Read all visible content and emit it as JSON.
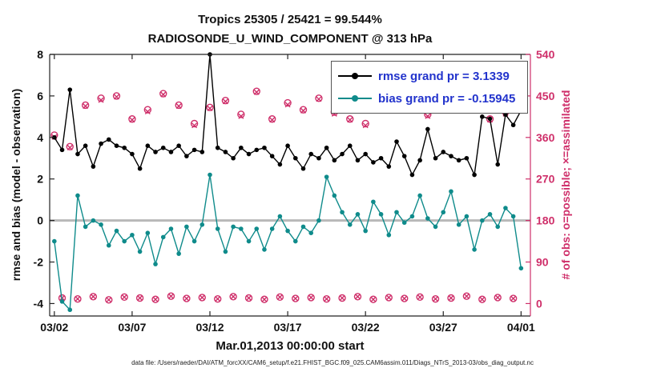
{
  "title": {
    "line1": "Tropics 25305 / 25421 = 99.544%",
    "line2": "RADIOSONDE_U_WIND_COMPONENT @ 313 hPa"
  },
  "axes": {
    "ylabel_left": "rmse and bias (model - observation)",
    "ylabel_right": "# of obs: o=possible; ×=assimilated",
    "xlabel": "Mar.01,2013 00:00:00 start"
  },
  "legend": {
    "items": [
      {
        "id": "rmse",
        "label": "rmse grand pr = 3.1339"
      },
      {
        "id": "bias",
        "label": "bias grand pr = -0.15945"
      }
    ]
  },
  "footer": {
    "datafile": "data file: /Users/raeder/DAI/ATM_forcXX/CAM6_setup/f.e21.FHIST_BGC.f09_025.CAM6assim.011/Diags_NTrS_2013-03/obs_diag_output.nc"
  },
  "chart_data": {
    "type": "line",
    "title": "Tropics 25305 / 25421 = 99.544% — RADIOSONDE_U_WIND_COMPONENT @ 313 hPa",
    "xlabel": "Mar.01,2013 00:00:00 start",
    "ylabel_left": "rmse and bias (model - observation)",
    "ylabel_right": "# of obs: o=possible; ×=assimilated",
    "x_unit": "days since Mar 1, 2013 00:00 UTC",
    "xlim": [
      0.7,
      31.6
    ],
    "ylim_left": [
      -4.6,
      8
    ],
    "ylim_right": [
      -27,
      540
    ],
    "xticks": [
      1,
      6,
      11,
      16,
      21,
      26,
      31
    ],
    "xtick_labels": [
      "03/02",
      "03/07",
      "03/12",
      "03/17",
      "03/22",
      "03/27",
      "04/01"
    ],
    "yticks_left": [
      -4,
      -2,
      0,
      2,
      4,
      6,
      8
    ],
    "yticks_right": [
      0,
      90,
      180,
      270,
      360,
      450,
      540
    ],
    "legend_position": "upper right inside axes",
    "grid": false,
    "colors": {
      "rmse": "#000000",
      "bias": "#0f8b8b",
      "counts": "#cf2f6a",
      "legend_text": "#2233cc",
      "zero_line": "#b8b8b8"
    },
    "x": [
      1,
      1.5,
      2,
      2.5,
      3,
      3.5,
      4,
      4.5,
      5,
      5.5,
      6,
      6.5,
      7,
      7.5,
      8,
      8.5,
      9,
      9.5,
      10,
      10.5,
      11,
      11.5,
      12,
      12.5,
      13,
      13.5,
      14,
      14.5,
      15,
      15.5,
      16,
      16.5,
      17,
      17.5,
      18,
      18.5,
      19,
      19.5,
      20,
      20.5,
      21,
      21.5,
      22,
      22.5,
      23,
      23.5,
      24,
      24.5,
      25,
      25.5,
      26,
      26.5,
      27,
      27.5,
      28,
      28.5,
      29,
      29.5,
      30,
      30.5,
      31
    ],
    "series": [
      {
        "name": "rmse",
        "axis": "left",
        "marker": "dot",
        "color": "#000000",
        "values": [
          4.0,
          3.4,
          6.3,
          3.2,
          3.6,
          2.6,
          3.7,
          3.9,
          3.6,
          3.5,
          3.2,
          2.5,
          3.6,
          3.3,
          3.5,
          3.3,
          3.6,
          3.1,
          3.4,
          3.3,
          8.0,
          3.5,
          3.3,
          3.0,
          3.5,
          3.2,
          3.4,
          3.5,
          3.1,
          2.7,
          3.6,
          3.0,
          2.5,
          3.2,
          3.0,
          3.5,
          2.9,
          3.2,
          3.6,
          2.9,
          3.2,
          2.8,
          3.0,
          2.6,
          3.8,
          3.1,
          2.2,
          2.9,
          4.4,
          3.0,
          3.3,
          3.1,
          2.9,
          3.0,
          2.2,
          5.0,
          4.9,
          2.7,
          5.1,
          4.6,
          5.3
        ]
      },
      {
        "name": "bias",
        "axis": "left",
        "marker": "dot",
        "color": "#0f8b8b",
        "values": [
          -1.0,
          -3.9,
          -4.3,
          1.2,
          -0.3,
          0.0,
          -0.2,
          -1.2,
          -0.5,
          -1.0,
          -0.7,
          -1.5,
          -0.6,
          -2.1,
          -0.8,
          -0.4,
          -1.6,
          -0.3,
          -1.0,
          -0.2,
          2.2,
          -0.4,
          -1.5,
          -0.3,
          -0.4,
          -1.0,
          -0.4,
          -1.4,
          -0.4,
          0.2,
          -0.5,
          -1.0,
          -0.3,
          -0.6,
          0.0,
          2.1,
          1.2,
          0.4,
          -0.2,
          0.3,
          -0.5,
          0.9,
          0.3,
          -0.7,
          0.4,
          -0.1,
          0.2,
          1.2,
          0.1,
          -0.3,
          0.4,
          1.4,
          -0.2,
          0.2,
          -1.4,
          0.0,
          0.3,
          -0.3,
          0.6,
          0.2,
          -2.3
        ]
      },
      {
        "name": "possible",
        "axis": "right",
        "marker": "o",
        "color": "#cf2f6a",
        "values": [
          365,
          12,
          340,
          10,
          430,
          15,
          445,
          8,
          450,
          14,
          400,
          12,
          420,
          9,
          455,
          16,
          430,
          11,
          390,
          13,
          425,
          10,
          440,
          15,
          410,
          12,
          460,
          9,
          400,
          14,
          435,
          11,
          420,
          13,
          445,
          10,
          415,
          12,
          400,
          15,
          390,
          9,
          430,
          13,
          460,
          11,
          425,
          14,
          410,
          10,
          445,
          12,
          420,
          16,
          435,
          9,
          400,
          13,
          415,
          11,
          430
        ]
      },
      {
        "name": "assimilated",
        "axis": "right",
        "marker": "x",
        "color": "#cf2f6a",
        "values": [
          361,
          12,
          338,
          10,
          428,
          15,
          441,
          8,
          448,
          14,
          398,
          12,
          416,
          9,
          453,
          16,
          428,
          11,
          386,
          13,
          423,
          10,
          438,
          15,
          406,
          12,
          458,
          9,
          398,
          14,
          431,
          11,
          418,
          13,
          443,
          10,
          411,
          12,
          398,
          15,
          386,
          9,
          428,
          13,
          456,
          11,
          423,
          14,
          406,
          10,
          443,
          12,
          418,
          16,
          431,
          9,
          398,
          13,
          411,
          11,
          428
        ]
      }
    ]
  }
}
